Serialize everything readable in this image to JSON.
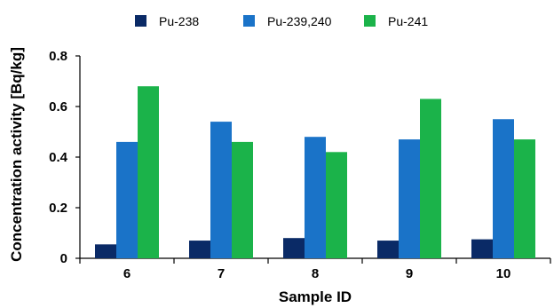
{
  "chart_data": {
    "type": "bar",
    "title": "",
    "xlabel": "Sample ID",
    "ylabel": "Concentration activity [Bq/kg]",
    "categories": [
      "6",
      "7",
      "8",
      "9",
      "10"
    ],
    "ylim": [
      0,
      0.8
    ],
    "yticks": [
      "0",
      "0.2",
      "0.4",
      "0.6",
      "0.8"
    ],
    "grid": false,
    "legend_position": "top",
    "series": [
      {
        "name": "Pu-238",
        "color": "#0a2a66",
        "values": [
          0.055,
          0.07,
          0.08,
          0.07,
          0.075
        ]
      },
      {
        "name": "Pu-239,240",
        "color": "#1a73c8",
        "values": [
          0.46,
          0.54,
          0.48,
          0.47,
          0.55
        ]
      },
      {
        "name": "Pu-241",
        "color": "#1bb34a",
        "values": [
          0.68,
          0.46,
          0.42,
          0.63,
          0.47
        ]
      }
    ]
  }
}
